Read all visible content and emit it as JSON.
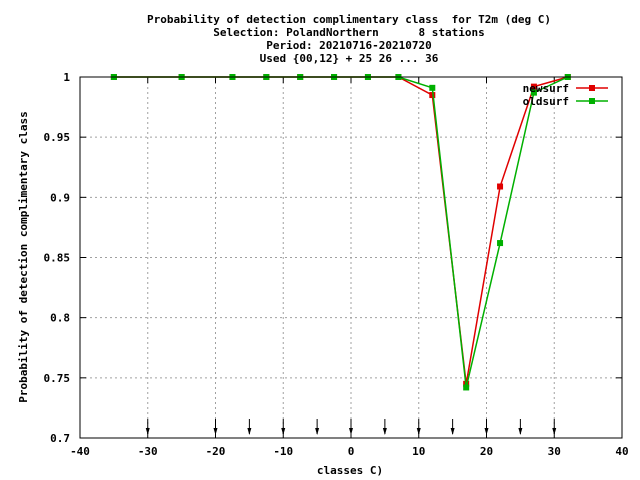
{
  "title_lines": [
    "Probability of detection complimentary class  for T2m (deg C)",
    "Selection: PolandNorthern      8 stations",
    "Period: 20210716-20210720",
    "Used {00,12} + 25 26 ... 36"
  ],
  "colors": {
    "newsurf": "#e00000",
    "oldsurf": "#00b000",
    "grid": "#a0a0a0"
  },
  "chart_data": {
    "type": "line",
    "xlabel": "classes C)",
    "ylabel": "Probability of detection complimentary class",
    "xlim": [
      -40,
      40
    ],
    "ylim": [
      0.7,
      1
    ],
    "x_ticks": [
      -40,
      -30,
      -20,
      -10,
      0,
      10,
      20,
      30,
      40
    ],
    "x_tick_labels": [
      "-40",
      "-30",
      "-20",
      "-10",
      "0",
      "10",
      "20",
      "30",
      "40"
    ],
    "y_ticks": [
      0.7,
      0.75,
      0.8,
      0.85,
      0.9,
      0.95,
      1
    ],
    "y_tick_labels": [
      "0.7",
      "0.75",
      "0.8",
      "0.85",
      "0.9",
      "0.95",
      "1"
    ],
    "grid": true,
    "legend_position": "top-right",
    "class_limits": [
      -30,
      -20,
      -15,
      -10,
      -5,
      0,
      5,
      10,
      15,
      20,
      25,
      30
    ],
    "series": [
      {
        "name": "newsurf",
        "color": "#e00000",
        "x": [
          -35,
          -25,
          -17.5,
          -12.5,
          -7.5,
          -2.5,
          2.5,
          7,
          12,
          17,
          22,
          27,
          32
        ],
        "y": [
          1,
          1,
          1,
          1,
          1,
          1,
          1,
          1,
          0.985,
          0.745,
          0.909,
          0.992,
          1
        ]
      },
      {
        "name": "oldsurf",
        "color": "#00b000",
        "x": [
          -35,
          -25,
          -17.5,
          -12.5,
          -7.5,
          -2.5,
          2.5,
          7,
          12,
          17,
          22,
          27,
          32
        ],
        "y": [
          1,
          1,
          1,
          1,
          1,
          1,
          1,
          1,
          0.991,
          0.742,
          0.862,
          0.987,
          1
        ]
      }
    ]
  }
}
